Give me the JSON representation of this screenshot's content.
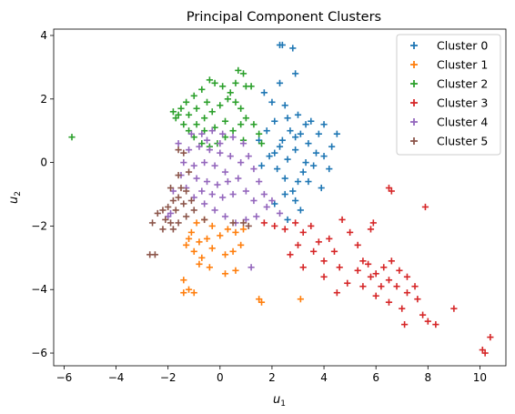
{
  "chart_data": {
    "type": "scatter",
    "title": "Principal Component Clusters",
    "xlabel": "u",
    "xlabel_sub": "1",
    "ylabel": "u",
    "ylabel_sub": "2",
    "xlim": [
      -6.4,
      11.0
    ],
    "ylim": [
      -6.4,
      4.2
    ],
    "xticks": [
      -6,
      -4,
      -2,
      0,
      2,
      4,
      6,
      8,
      10
    ],
    "yticks": [
      -6,
      -4,
      -2,
      0,
      2,
      4
    ],
    "marker": "+",
    "legend_position": "top-right",
    "series": [
      {
        "name": "Cluster 0",
        "color": "#1f77b4",
        "points": [
          [
            2.4,
            3.7
          ],
          [
            2.3,
            3.7
          ],
          [
            2.8,
            3.6
          ],
          [
            2.9,
            2.8
          ],
          [
            2.3,
            2.5
          ],
          [
            1.7,
            2.2
          ],
          [
            2.0,
            1.9
          ],
          [
            2.5,
            1.8
          ],
          [
            3.0,
            1.5
          ],
          [
            3.5,
            1.3
          ],
          [
            4.0,
            1.2
          ],
          [
            4.5,
            0.9
          ],
          [
            4.3,
            0.5
          ],
          [
            4.0,
            0.2
          ],
          [
            3.6,
            -0.1
          ],
          [
            3.2,
            -0.3
          ],
          [
            3.0,
            -0.6
          ],
          [
            2.8,
            -0.9
          ],
          [
            2.5,
            -0.5
          ],
          [
            2.2,
            -0.2
          ],
          [
            2.1,
            0.3
          ],
          [
            2.4,
            0.7
          ],
          [
            2.7,
            1.0
          ],
          [
            3.1,
            0.9
          ],
          [
            3.4,
            0.6
          ],
          [
            3.7,
            0.3
          ],
          [
            3.3,
            0.0
          ],
          [
            2.9,
            0.4
          ],
          [
            2.6,
            0.1
          ],
          [
            2.3,
            0.5
          ],
          [
            1.9,
            0.2
          ],
          [
            1.6,
            -0.1
          ],
          [
            1.5,
            0.7
          ],
          [
            1.8,
            1.0
          ],
          [
            2.1,
            1.3
          ],
          [
            2.6,
            1.4
          ],
          [
            3.3,
            1.2
          ],
          [
            3.8,
            0.9
          ],
          [
            2.9,
            0.8
          ],
          [
            2.5,
            -1.0
          ],
          [
            2.1,
            -1.3
          ],
          [
            2.9,
            -1.2
          ],
          [
            3.4,
            -0.6
          ],
          [
            3.9,
            -0.8
          ],
          [
            4.2,
            -0.2
          ],
          [
            3.1,
            -1.5
          ],
          [
            2.6,
            -1.8
          ]
        ]
      },
      {
        "name": "Cluster 1",
        "color": "#ff7f0e",
        "points": [
          [
            -0.9,
            -1.9
          ],
          [
            -0.6,
            -1.8
          ],
          [
            -0.3,
            -2.0
          ],
          [
            -1.1,
            -2.2
          ],
          [
            -0.8,
            -2.5
          ],
          [
            -0.5,
            -2.4
          ],
          [
            -1.3,
            -2.6
          ],
          [
            -1.0,
            -2.8
          ],
          [
            -0.7,
            -3.0
          ],
          [
            -0.3,
            -2.7
          ],
          [
            0.0,
            -2.3
          ],
          [
            0.3,
            -2.1
          ],
          [
            0.6,
            -2.2
          ],
          [
            0.9,
            -2.1
          ],
          [
            0.2,
            -2.9
          ],
          [
            -0.4,
            -3.3
          ],
          [
            0.6,
            -3.4
          ],
          [
            0.2,
            -3.5
          ],
          [
            -1.4,
            -3.7
          ],
          [
            -1.2,
            -4.0
          ],
          [
            -1.4,
            -4.1
          ],
          [
            -1.0,
            -4.1
          ],
          [
            1.5,
            -4.3
          ],
          [
            1.6,
            -4.4
          ],
          [
            3.1,
            -4.3
          ],
          [
            -0.8,
            -3.2
          ],
          [
            -1.2,
            -2.4
          ],
          [
            0.8,
            -2.6
          ],
          [
            0.5,
            -2.8
          ]
        ]
      },
      {
        "name": "Cluster 2",
        "color": "#2ca02c",
        "points": [
          [
            -0.4,
            2.6
          ],
          [
            -0.2,
            2.5
          ],
          [
            0.1,
            2.4
          ],
          [
            0.4,
            2.2
          ],
          [
            -0.7,
            2.3
          ],
          [
            -1.0,
            2.1
          ],
          [
            -1.3,
            1.9
          ],
          [
            -1.5,
            1.7
          ],
          [
            -1.6,
            1.5
          ],
          [
            -1.4,
            1.2
          ],
          [
            -1.2,
            1.0
          ],
          [
            -1.0,
            0.8
          ],
          [
            -0.7,
            0.6
          ],
          [
            -0.4,
            0.5
          ],
          [
            -0.1,
            0.6
          ],
          [
            0.2,
            0.8
          ],
          [
            0.5,
            1.0
          ],
          [
            0.8,
            1.2
          ],
          [
            1.0,
            1.4
          ],
          [
            0.8,
            1.7
          ],
          [
            0.6,
            1.9
          ],
          [
            0.3,
            2.0
          ],
          [
            0.0,
            1.8
          ],
          [
            -0.3,
            1.6
          ],
          [
            -0.6,
            1.4
          ],
          [
            -0.9,
            1.2
          ],
          [
            -0.6,
            1.0
          ],
          [
            -0.2,
            1.1
          ],
          [
            0.2,
            1.3
          ],
          [
            -0.5,
            1.9
          ],
          [
            -0.9,
            1.7
          ],
          [
            -1.2,
            1.5
          ],
          [
            0.7,
            2.9
          ],
          [
            0.9,
            2.8
          ],
          [
            0.6,
            2.5
          ],
          [
            1.0,
            2.4
          ],
          [
            1.2,
            2.4
          ],
          [
            1.3,
            1.2
          ],
          [
            1.5,
            0.9
          ],
          [
            0.9,
            0.7
          ],
          [
            -5.7,
            0.8
          ],
          [
            1.6,
            0.6
          ],
          [
            -1.8,
            1.6
          ],
          [
            -1.7,
            1.4
          ]
        ]
      },
      {
        "name": "Cluster 3",
        "color": "#d62728",
        "points": [
          [
            1.7,
            -1.9
          ],
          [
            2.1,
            -2.0
          ],
          [
            2.5,
            -2.1
          ],
          [
            2.9,
            -1.9
          ],
          [
            3.2,
            -2.2
          ],
          [
            3.0,
            -2.6
          ],
          [
            2.7,
            -2.9
          ],
          [
            3.2,
            -3.3
          ],
          [
            3.6,
            -2.8
          ],
          [
            4.0,
            -3.1
          ],
          [
            4.4,
            -2.8
          ],
          [
            4.6,
            -3.3
          ],
          [
            4.0,
            -3.6
          ],
          [
            4.5,
            -4.1
          ],
          [
            4.9,
            -3.8
          ],
          [
            5.3,
            -3.4
          ],
          [
            5.7,
            -3.2
          ],
          [
            6.0,
            -3.5
          ],
          [
            6.3,
            -3.3
          ],
          [
            6.6,
            -3.1
          ],
          [
            6.9,
            -3.4
          ],
          [
            7.2,
            -3.6
          ],
          [
            7.5,
            -3.9
          ],
          [
            7.2,
            -4.1
          ],
          [
            6.8,
            -3.9
          ],
          [
            6.5,
            -3.7
          ],
          [
            6.2,
            -3.9
          ],
          [
            5.8,
            -3.6
          ],
          [
            5.5,
            -3.9
          ],
          [
            6.0,
            -4.2
          ],
          [
            6.5,
            -4.4
          ],
          [
            7.0,
            -4.6
          ],
          [
            7.6,
            -4.3
          ],
          [
            7.8,
            -4.8
          ],
          [
            8.3,
            -5.1
          ],
          [
            7.1,
            -5.1
          ],
          [
            8.0,
            -5.0
          ],
          [
            9.0,
            -4.6
          ],
          [
            10.4,
            -5.5
          ],
          [
            10.1,
            -5.9
          ],
          [
            10.2,
            -6.0
          ],
          [
            7.9,
            -1.4
          ],
          [
            6.6,
            -0.9
          ],
          [
            6.5,
            -0.8
          ],
          [
            5.9,
            -1.9
          ],
          [
            5.8,
            -2.1
          ],
          [
            4.7,
            -1.8
          ],
          [
            4.2,
            -2.4
          ],
          [
            5.0,
            -2.2
          ],
          [
            5.3,
            -2.6
          ],
          [
            5.5,
            -3.1
          ],
          [
            3.5,
            -2.0
          ],
          [
            3.8,
            -2.5
          ]
        ]
      },
      {
        "name": "Cluster 4",
        "color": "#9467bd",
        "points": [
          [
            -1.1,
            0.9
          ],
          [
            -0.7,
            0.9
          ],
          [
            -0.3,
            1.0
          ],
          [
            0.1,
            0.9
          ],
          [
            0.5,
            0.8
          ],
          [
            0.9,
            0.6
          ],
          [
            1.1,
            0.2
          ],
          [
            1.3,
            -0.2
          ],
          [
            1.5,
            -0.6
          ],
          [
            1.7,
            -1.0
          ],
          [
            1.8,
            -1.4
          ],
          [
            1.4,
            -1.7
          ],
          [
            1.0,
            -1.8
          ],
          [
            0.6,
            -1.9
          ],
          [
            0.2,
            -1.7
          ],
          [
            -0.2,
            -1.5
          ],
          [
            -0.6,
            -1.3
          ],
          [
            -1.0,
            -1.1
          ],
          [
            -1.3,
            -0.8
          ],
          [
            -1.5,
            -0.4
          ],
          [
            -1.4,
            0.0
          ],
          [
            -1.2,
            0.4
          ],
          [
            -0.8,
            0.5
          ],
          [
            -0.4,
            0.4
          ],
          [
            0.0,
            0.3
          ],
          [
            0.4,
            0.2
          ],
          [
            0.8,
            0.0
          ],
          [
            0.7,
            -0.5
          ],
          [
            0.3,
            -0.6
          ],
          [
            -0.1,
            -0.7
          ],
          [
            -0.5,
            -0.6
          ],
          [
            -0.9,
            -0.5
          ],
          [
            -1.0,
            -0.1
          ],
          [
            -0.6,
            0.0
          ],
          [
            -0.2,
            -0.1
          ],
          [
            0.2,
            -0.3
          ],
          [
            0.5,
            -1.0
          ],
          [
            0.1,
            -1.1
          ],
          [
            -0.3,
            -1.0
          ],
          [
            -0.7,
            -0.9
          ],
          [
            1.0,
            -0.9
          ],
          [
            1.3,
            -1.2
          ],
          [
            2.0,
            -1.2
          ],
          [
            2.3,
            -1.6
          ],
          [
            0.0,
            0.6
          ],
          [
            -0.5,
            0.7
          ],
          [
            1.2,
            -3.3
          ],
          [
            -1.8,
            -0.9
          ],
          [
            -1.9,
            -1.6
          ],
          [
            -2.0,
            -1.7
          ],
          [
            -1.6,
            0.6
          ]
        ]
      },
      {
        "name": "Cluster 5",
        "color": "#8c564b",
        "points": [
          [
            -1.6,
            0.4
          ],
          [
            -1.4,
            0.3
          ],
          [
            -1.6,
            -0.4
          ],
          [
            -1.5,
            -0.8
          ],
          [
            -1.3,
            -0.9
          ],
          [
            -1.6,
            -1.1
          ],
          [
            -1.8,
            -1.2
          ],
          [
            -2.0,
            -1.4
          ],
          [
            -2.2,
            -1.5
          ],
          [
            -2.4,
            -1.6
          ],
          [
            -2.1,
            -1.8
          ],
          [
            -1.9,
            -1.9
          ],
          [
            -1.6,
            -1.9
          ],
          [
            -1.3,
            -1.7
          ],
          [
            -1.0,
            -1.5
          ],
          [
            -1.1,
            -1.2
          ],
          [
            -1.4,
            -1.3
          ],
          [
            -1.7,
            -1.5
          ],
          [
            -2.6,
            -1.9
          ],
          [
            -2.2,
            -2.1
          ],
          [
            -1.8,
            -2.1
          ],
          [
            -0.6,
            -1.8
          ],
          [
            0.5,
            -1.9
          ],
          [
            0.9,
            -1.9
          ],
          [
            1.1,
            -2.0
          ],
          [
            -2.7,
            -2.9
          ],
          [
            -2.5,
            -2.9
          ],
          [
            -1.2,
            -0.3
          ],
          [
            -1.9,
            -0.8
          ]
        ]
      }
    ]
  }
}
